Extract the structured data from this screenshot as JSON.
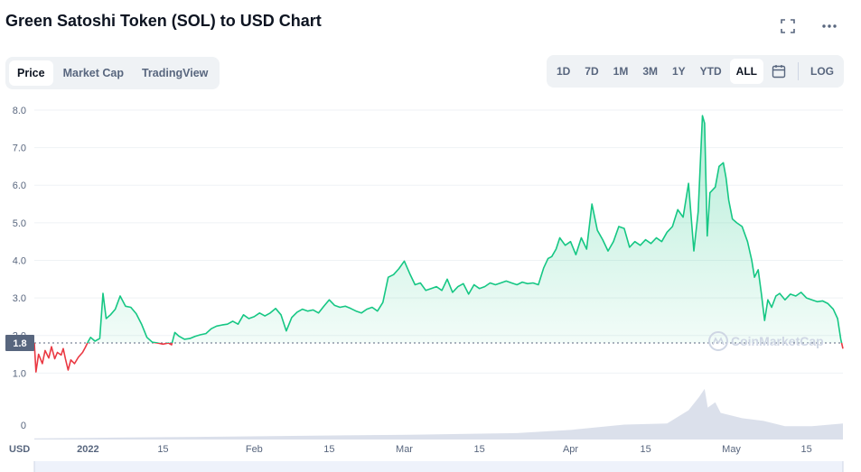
{
  "header": {
    "title": "Green Satoshi Token (SOL) to USD Chart"
  },
  "icons": {
    "fullscreen": "fullscreen-icon",
    "more": "more-icon",
    "calendar": "calendar-icon"
  },
  "tabs": [
    {
      "label": "Price",
      "active": true
    },
    {
      "label": "Market Cap",
      "active": false
    },
    {
      "label": "TradingView",
      "active": false
    }
  ],
  "ranges": [
    {
      "label": "1D",
      "active": false
    },
    {
      "label": "7D",
      "active": false
    },
    {
      "label": "1M",
      "active": false
    },
    {
      "label": "3M",
      "active": false
    },
    {
      "label": "1Y",
      "active": false
    },
    {
      "label": "YTD",
      "active": false
    },
    {
      "label": "ALL",
      "active": true
    }
  ],
  "log_label": "LOG",
  "colors": {
    "up": "#16c784",
    "down": "#ea3943",
    "axis_text": "#58667e",
    "grid": "#eff2f5",
    "volume": "#cfd6e4"
  },
  "chart_data": {
    "type": "area",
    "currency_label": "USD",
    "ylim": [
      0.6,
      8.0
    ],
    "y_ticks": [
      "8.0",
      "7.0",
      "6.0",
      "5.0",
      "4.0",
      "3.0",
      "2.0",
      "1.0"
    ],
    "volume_tick": "0",
    "current_price_label": "1.8",
    "reference_price": 1.8,
    "x_ticks": [
      {
        "label": "2022",
        "day": 0
      },
      {
        "label": "15",
        "day": 14
      },
      {
        "label": "Feb",
        "day": 31
      },
      {
        "label": "15",
        "day": 45
      },
      {
        "label": "Mar",
        "day": 59
      },
      {
        "label": "15",
        "day": 73
      },
      {
        "label": "Apr",
        "day": 90
      },
      {
        "label": "15",
        "day": 104
      },
      {
        "label": "May",
        "day": 120
      },
      {
        "label": "15",
        "day": 134
      }
    ],
    "series": [
      {
        "points": [
          [
            -10,
            1.8
          ],
          [
            -9.7,
            1.03
          ],
          [
            -9.2,
            1.5
          ],
          [
            -8.5,
            1.25
          ],
          [
            -8,
            1.6
          ],
          [
            -7.3,
            1.4
          ],
          [
            -6.8,
            1.7
          ],
          [
            -6.2,
            1.38
          ],
          [
            -5.7,
            1.55
          ],
          [
            -5,
            1.48
          ],
          [
            -4.6,
            1.65
          ],
          [
            -4.2,
            1.38
          ],
          [
            -3.7,
            1.08
          ],
          [
            -3.2,
            1.35
          ],
          [
            -2.5,
            1.25
          ],
          [
            -1.8,
            1.42
          ],
          [
            -1,
            1.55
          ],
          [
            -0.5,
            1.68
          ],
          [
            0,
            1.83
          ],
          [
            0.5,
            1.95
          ],
          [
            1.3,
            1.85
          ],
          [
            2.2,
            1.92
          ],
          [
            2.8,
            3.12
          ],
          [
            3.4,
            2.45
          ],
          [
            4.2,
            2.55
          ],
          [
            5.1,
            2.7
          ],
          [
            6,
            3.05
          ],
          [
            7,
            2.78
          ],
          [
            8,
            2.75
          ],
          [
            9,
            2.58
          ],
          [
            10,
            2.3
          ],
          [
            11,
            1.95
          ],
          [
            12,
            1.82
          ],
          [
            13,
            1.8
          ],
          [
            14,
            1.77
          ],
          [
            15,
            1.8
          ],
          [
            15.6,
            1.75
          ],
          [
            16.2,
            2.08
          ],
          [
            17,
            1.98
          ],
          [
            18,
            1.9
          ],
          [
            19,
            1.92
          ],
          [
            20,
            1.98
          ],
          [
            21,
            2.02
          ],
          [
            22,
            2.05
          ],
          [
            23,
            2.18
          ],
          [
            24,
            2.25
          ],
          [
            25,
            2.28
          ],
          [
            26,
            2.3
          ],
          [
            27,
            2.38
          ],
          [
            28,
            2.3
          ],
          [
            29,
            2.55
          ],
          [
            30,
            2.45
          ],
          [
            31,
            2.5
          ],
          [
            32,
            2.6
          ],
          [
            33,
            2.52
          ],
          [
            34,
            2.6
          ],
          [
            35,
            2.72
          ],
          [
            36,
            2.55
          ],
          [
            37,
            2.12
          ],
          [
            38,
            2.48
          ],
          [
            39,
            2.62
          ],
          [
            40,
            2.7
          ],
          [
            41,
            2.65
          ],
          [
            42,
            2.68
          ],
          [
            43,
            2.6
          ],
          [
            44,
            2.78
          ],
          [
            45,
            2.95
          ],
          [
            46,
            2.8
          ],
          [
            47,
            2.75
          ],
          [
            48,
            2.78
          ],
          [
            49,
            2.72
          ],
          [
            50,
            2.65
          ],
          [
            51,
            2.6
          ],
          [
            52,
            2.7
          ],
          [
            53,
            2.75
          ],
          [
            54,
            2.65
          ],
          [
            55,
            2.88
          ],
          [
            56,
            3.55
          ],
          [
            57,
            3.62
          ],
          [
            58,
            3.78
          ],
          [
            59,
            3.98
          ],
          [
            60,
            3.65
          ],
          [
            61,
            3.35
          ],
          [
            62,
            3.4
          ],
          [
            63,
            3.2
          ],
          [
            64,
            3.25
          ],
          [
            65,
            3.3
          ],
          [
            66,
            3.2
          ],
          [
            67,
            3.5
          ],
          [
            68,
            3.15
          ],
          [
            69,
            3.3
          ],
          [
            70,
            3.38
          ],
          [
            71,
            3.1
          ],
          [
            72,
            3.35
          ],
          [
            73,
            3.25
          ],
          [
            74,
            3.3
          ],
          [
            75,
            3.4
          ],
          [
            76,
            3.35
          ],
          [
            77,
            3.4
          ],
          [
            78,
            3.45
          ],
          [
            79,
            3.4
          ],
          [
            80,
            3.35
          ],
          [
            81,
            3.42
          ],
          [
            82,
            3.38
          ],
          [
            83,
            3.4
          ],
          [
            84,
            3.35
          ],
          [
            85,
            3.8
          ],
          [
            85.8,
            4.05
          ],
          [
            86.5,
            4.1
          ],
          [
            87.3,
            4.3
          ],
          [
            88,
            4.6
          ],
          [
            89,
            4.4
          ],
          [
            90,
            4.5
          ],
          [
            91,
            4.15
          ],
          [
            92,
            4.6
          ],
          [
            93,
            4.3
          ],
          [
            94,
            5.5
          ],
          [
            95,
            4.8
          ],
          [
            96,
            4.55
          ],
          [
            97,
            4.25
          ],
          [
            98,
            4.5
          ],
          [
            99,
            4.9
          ],
          [
            100,
            4.85
          ],
          [
            101,
            4.35
          ],
          [
            102,
            4.5
          ],
          [
            103,
            4.4
          ],
          [
            104,
            4.55
          ],
          [
            105,
            4.45
          ],
          [
            106,
            4.6
          ],
          [
            107,
            4.5
          ],
          [
            108,
            4.75
          ],
          [
            109,
            4.9
          ],
          [
            110,
            5.35
          ],
          [
            111,
            5.15
          ],
          [
            112,
            6.05
          ],
          [
            113,
            4.25
          ],
          [
            113.8,
            5.3
          ],
          [
            114.6,
            7.85
          ],
          [
            115,
            7.65
          ],
          [
            115.5,
            4.65
          ],
          [
            116,
            5.8
          ],
          [
            117,
            5.95
          ],
          [
            117.7,
            6.5
          ],
          [
            118.5,
            6.6
          ],
          [
            119,
            6.2
          ],
          [
            119.5,
            5.6
          ],
          [
            120.2,
            5.1
          ],
          [
            121,
            5.0
          ],
          [
            122,
            4.9
          ],
          [
            123,
            4.5
          ],
          [
            123.8,
            4.0
          ],
          [
            124.3,
            3.55
          ],
          [
            125,
            3.75
          ],
          [
            125.6,
            3.1
          ],
          [
            126.2,
            2.4
          ],
          [
            126.8,
            2.95
          ],
          [
            127.5,
            2.75
          ],
          [
            128.3,
            3.05
          ],
          [
            129,
            3.12
          ],
          [
            130,
            2.95
          ],
          [
            131,
            3.1
          ],
          [
            132,
            3.05
          ],
          [
            133,
            3.15
          ],
          [
            134,
            3.0
          ],
          [
            135,
            2.95
          ],
          [
            136,
            2.9
          ],
          [
            137,
            2.92
          ],
          [
            138,
            2.85
          ],
          [
            139,
            2.7
          ],
          [
            139.8,
            2.45
          ],
          [
            140.4,
            1.9
          ],
          [
            140.8,
            1.65
          ]
        ]
      }
    ],
    "volume": [
      [
        -10,
        0.02
      ],
      [
        0,
        0.03
      ],
      [
        20,
        0.05
      ],
      [
        40,
        0.07
      ],
      [
        60,
        0.09
      ],
      [
        80,
        0.12
      ],
      [
        90,
        0.18
      ],
      [
        100,
        0.28
      ],
      [
        108,
        0.3
      ],
      [
        112,
        0.55
      ],
      [
        114,
        0.8
      ],
      [
        115,
        0.95
      ],
      [
        115.6,
        0.6
      ],
      [
        117,
        0.7
      ],
      [
        118,
        0.5
      ],
      [
        122,
        0.4
      ],
      [
        126,
        0.35
      ],
      [
        130,
        0.25
      ],
      [
        135,
        0.25
      ],
      [
        140.8,
        0.3
      ]
    ],
    "watermark": "CoinMarketCap"
  }
}
